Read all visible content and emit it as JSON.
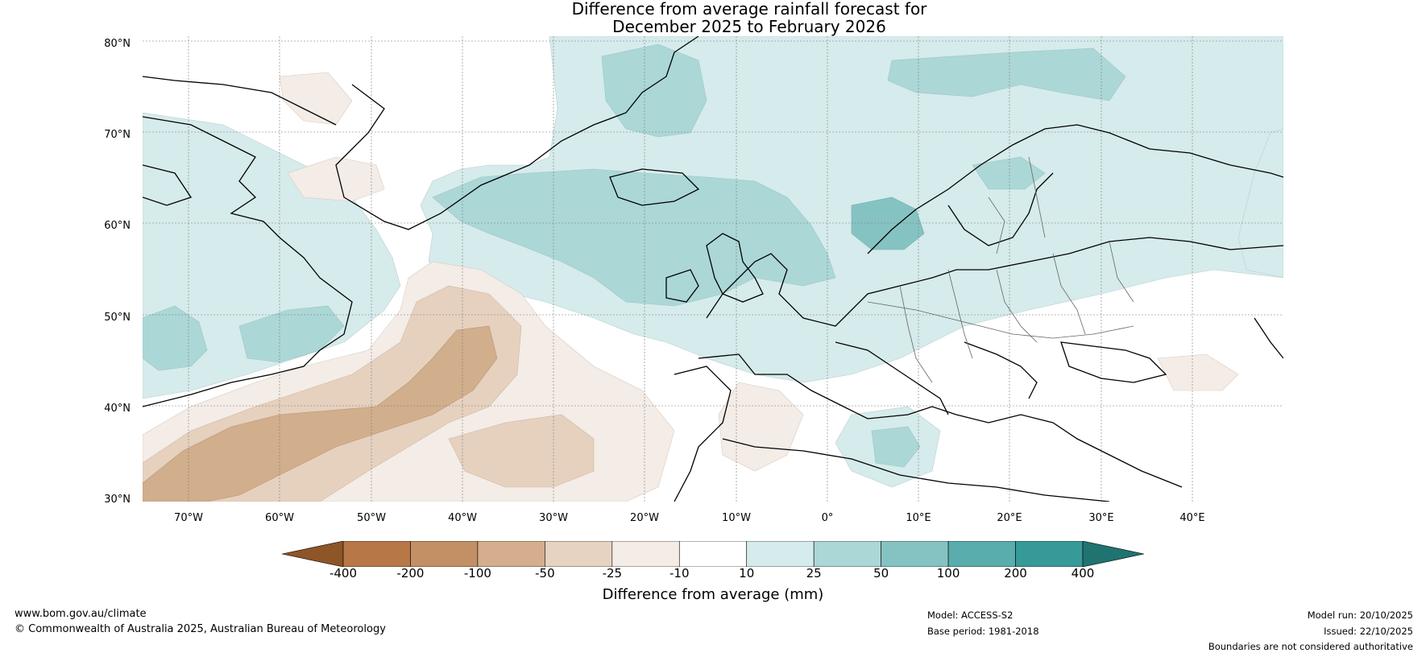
{
  "title": {
    "line1": "Difference from average rainfall forecast for",
    "line2": "December 2025 to February 2026"
  },
  "map": {
    "lat_labels": [
      "80°N",
      "70°N",
      "60°N",
      "50°N",
      "40°N",
      "30°N"
    ],
    "lon_labels": [
      "70°W",
      "60°W",
      "50°W",
      "40°W",
      "30°W",
      "20°W",
      "10°W",
      "0°",
      "10°E",
      "20°E",
      "30°E",
      "40°E"
    ],
    "extent": {
      "lon_min": -75,
      "lon_max": 50,
      "lat_min": 30,
      "lat_max": 81
    },
    "colors": {
      "dry_-400": "#a5622c",
      "dry_-200": "#bc8b60",
      "dry_-100": "#d1ae8c",
      "dry_-50": "#e6d1bf",
      "dry_-25": "#f4ece6",
      "neutral": "#ffffff",
      "wet_10": "#d6ebeb",
      "wet_25": "#acd7d7",
      "wet_50": "#85c3c2",
      "wet_100": "#5aadad",
      "wet_200": "#369a99",
      "wet_400": "#24817f"
    }
  },
  "colorbar": {
    "ticks": [
      "-400",
      "-200",
      "-100",
      "-50",
      "-25",
      "-10",
      "10",
      "25",
      "50",
      "100",
      "200",
      "400"
    ],
    "colors": [
      "#a5622c",
      "#b87746",
      "#c39065",
      "#d4ae8d",
      "#e7d3c1",
      "#f4ece6",
      "#ffffff",
      "#d6ebeb",
      "#acd7d7",
      "#85c3c2",
      "#5aadad",
      "#369a99",
      "#24817f"
    ],
    "label": "Difference from average (mm)"
  },
  "footer": {
    "url": "www.bom.gov.au/climate",
    "copyright": "© Commonwealth of Australia 2025, Australian Bureau of Meteorology",
    "model": "Model: ACCESS-S2",
    "base_period": "Base period: 1981-2018",
    "model_run": "Model run: 20/10/2025",
    "issued": "Issued: 22/10/2025",
    "disclaimer": "Boundaries are not considered authoritative"
  }
}
